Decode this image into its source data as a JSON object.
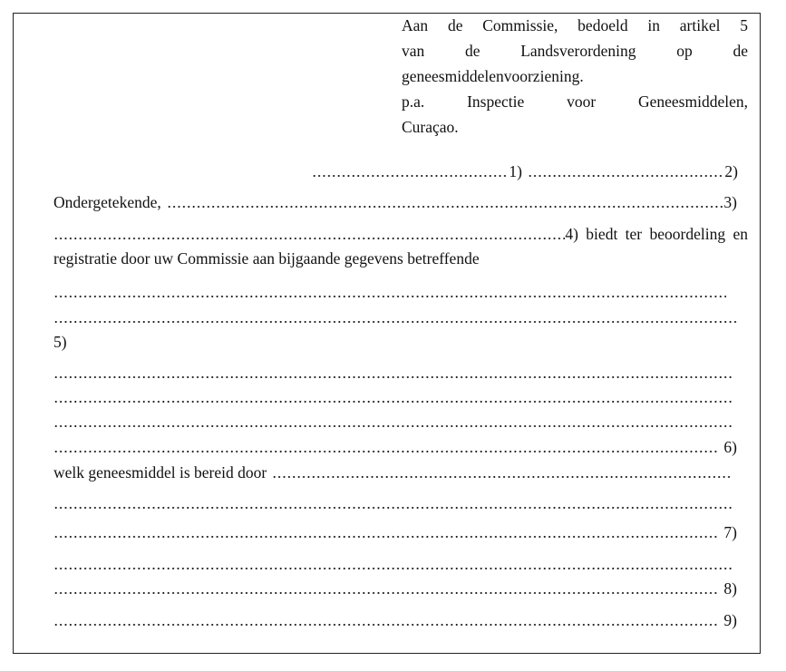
{
  "addressee": {
    "lines": [
      "Aan de Commissie, bedoeld in artikel 5",
      "van de Landsverordening op de",
      "geneesmiddelenvoorziening.",
      "p.a. Inspectie voor Geneesmiddelen,",
      "Curaçao."
    ]
  },
  "form": {
    "ref1": "1)",
    "ref2": "2)",
    "undersigned_label": "Ondergetekende,",
    "ref3": "3)",
    "ref4_text": "4) biedt ter beoordeling en",
    "registration_text": "registratie door uw Commissie aan bijgaande gegevens betreffende",
    "ref5": "5)",
    "ref6": "6)",
    "prepared_by_label": "welk geneesmiddel is bereid door",
    "ref7": "7)",
    "ref8": "8)",
    "ref9": "9)"
  }
}
